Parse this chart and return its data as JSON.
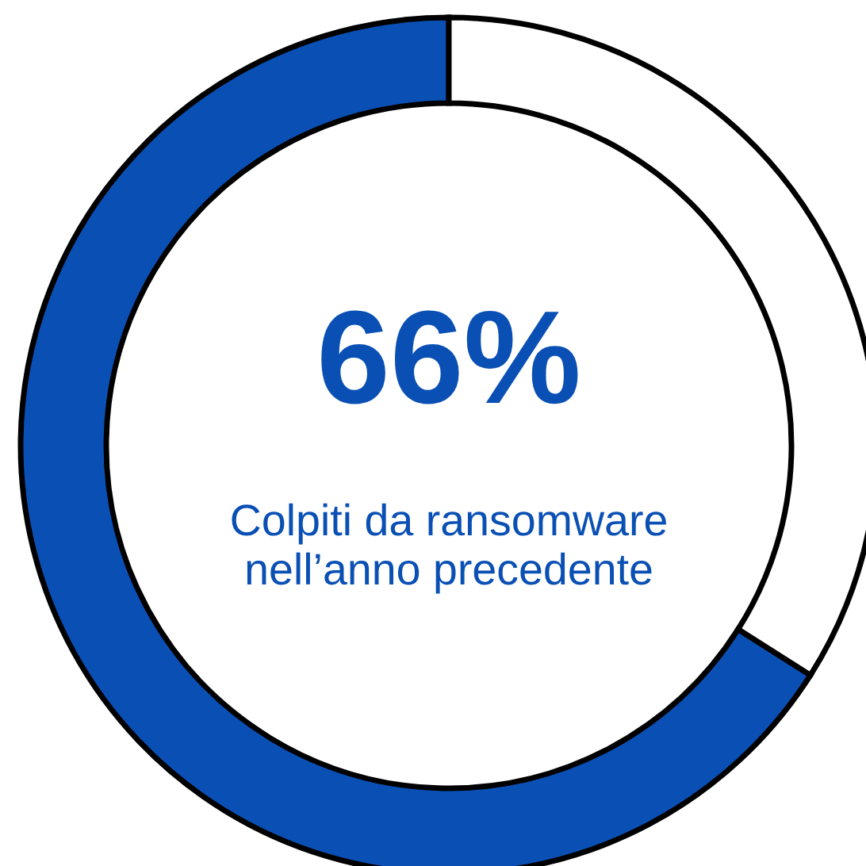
{
  "chart_data": {
    "type": "donut",
    "categories": [
      null,
      null
    ],
    "values": [
      66,
      34
    ],
    "colors": [
      "#0a50b4",
      "#ffffff"
    ],
    "value_labels": [
      "66%",
      null
    ],
    "annotations": [
      "Colpiti da ransomware\nnell’anno precedente"
    ]
  }
}
